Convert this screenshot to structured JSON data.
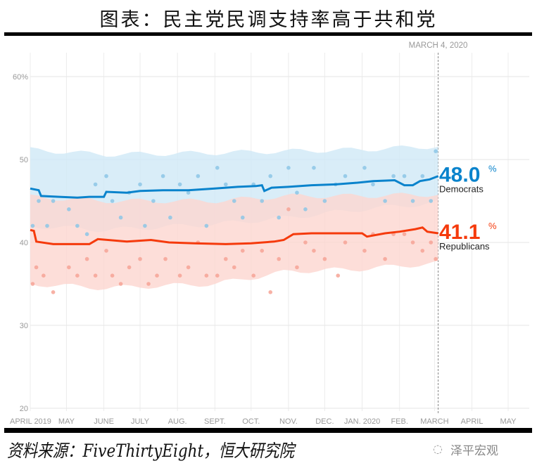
{
  "title": "图表：民主党民调支持率高于共和党",
  "source": "资料来源：FiveThirtyEight，恒大研究院",
  "brand": "泽平宏观",
  "brand_icon": "wechat-icon",
  "chart_data": {
    "type": "line",
    "title": "图表：民主党民调支持率高于共和党",
    "xlim": [
      "2019-04-01",
      "2020-05-01"
    ],
    "ylim": [
      20,
      62
    ],
    "y_ticks": [
      20,
      30,
      40,
      50,
      60
    ],
    "y_tick_labels": [
      "20",
      "30",
      "40",
      "50",
      "60%"
    ],
    "x_ticks": [
      {
        "date": "2019-04-01",
        "label": "APRIL 2019"
      },
      {
        "date": "2019-05-01",
        "label": "MAY"
      },
      {
        "date": "2019-06-01",
        "label": "JUNE"
      },
      {
        "date": "2019-07-01",
        "label": "JULY"
      },
      {
        "date": "2019-08-01",
        "label": "AUG."
      },
      {
        "date": "2019-09-01",
        "label": "SEPT."
      },
      {
        "date": "2019-10-01",
        "label": "OCT."
      },
      {
        "date": "2019-11-01",
        "label": "NOV."
      },
      {
        "date": "2019-12-01",
        "label": "DEC."
      },
      {
        "date": "2020-01-01",
        "label": "JAN. 2020"
      },
      {
        "date": "2020-02-01",
        "label": "FEB."
      },
      {
        "date": "2020-03-01",
        "label": "MARCH"
      },
      {
        "date": "2020-04-01",
        "label": "APRIL"
      },
      {
        "date": "2020-05-01",
        "label": "MAY"
      }
    ],
    "grid": true,
    "marker": {
      "date": "2020-03-04",
      "label": "MARCH 4, 2020"
    },
    "series": [
      {
        "name": "Democrats",
        "final_value": "48.0",
        "color": "#0a83cc",
        "band_color": "#cfe8f6",
        "dot_color": "#8cc6e6",
        "line": [
          [
            "2019-04-01",
            46.5
          ],
          [
            "2019-04-08",
            46.3
          ],
          [
            "2019-04-10",
            45.6
          ],
          [
            "2019-04-25",
            45.5
          ],
          [
            "2019-05-10",
            45.4
          ],
          [
            "2019-05-20",
            45.5
          ],
          [
            "2019-06-01",
            45.5
          ],
          [
            "2019-06-03",
            46.1
          ],
          [
            "2019-06-20",
            46.0
          ],
          [
            "2019-07-01",
            46.2
          ],
          [
            "2019-07-20",
            46.3
          ],
          [
            "2019-08-10",
            46.3
          ],
          [
            "2019-09-01",
            46.5
          ],
          [
            "2019-09-20",
            46.7
          ],
          [
            "2019-10-05",
            46.8
          ],
          [
            "2019-10-10",
            46.9
          ],
          [
            "2019-10-12",
            46.2
          ],
          [
            "2019-10-18",
            46.6
          ],
          [
            "2019-11-01",
            46.7
          ],
          [
            "2019-11-20",
            46.9
          ],
          [
            "2019-12-10",
            47.0
          ],
          [
            "2019-12-28",
            47.2
          ],
          [
            "2020-01-10",
            47.4
          ],
          [
            "2020-01-28",
            47.5
          ],
          [
            "2020-02-05",
            46.9
          ],
          [
            "2020-02-12",
            46.9
          ],
          [
            "2020-02-18",
            47.4
          ],
          [
            "2020-02-26",
            47.6
          ],
          [
            "2020-03-04",
            48.0
          ]
        ],
        "band_upper": [
          [
            "2019-04-01",
            51.2
          ],
          [
            "2019-06-01",
            50.6
          ],
          [
            "2019-09-01",
            50.8
          ],
          [
            "2019-11-01",
            51.0
          ],
          [
            "2020-01-01",
            51.2
          ],
          [
            "2020-03-04",
            51.6
          ]
        ],
        "band_lower": [
          [
            "2019-04-01",
            42.0
          ],
          [
            "2019-06-01",
            41.5
          ],
          [
            "2019-09-01",
            42.2
          ],
          [
            "2019-11-01",
            43.0
          ],
          [
            "2020-01-01",
            44.0
          ],
          [
            "2020-03-04",
            44.8
          ]
        ],
        "polls": [
          [
            "2019-04-03",
            42
          ],
          [
            "2019-04-08",
            45
          ],
          [
            "2019-04-15",
            42
          ],
          [
            "2019-04-20",
            45
          ],
          [
            "2019-05-03",
            44
          ],
          [
            "2019-05-10",
            42
          ],
          [
            "2019-05-18",
            41
          ],
          [
            "2019-05-25",
            47
          ],
          [
            "2019-06-03",
            48
          ],
          [
            "2019-06-08",
            45
          ],
          [
            "2019-06-15",
            43
          ],
          [
            "2019-06-22",
            46
          ],
          [
            "2019-07-01",
            47
          ],
          [
            "2019-07-05",
            42
          ],
          [
            "2019-07-12",
            45
          ],
          [
            "2019-07-20",
            48
          ],
          [
            "2019-07-26",
            43
          ],
          [
            "2019-08-03",
            47
          ],
          [
            "2019-08-10",
            46
          ],
          [
            "2019-08-18",
            48
          ],
          [
            "2019-08-25",
            42
          ],
          [
            "2019-09-03",
            49
          ],
          [
            "2019-09-10",
            47
          ],
          [
            "2019-09-17",
            45
          ],
          [
            "2019-09-24",
            43
          ],
          [
            "2019-10-03",
            47
          ],
          [
            "2019-10-10",
            45
          ],
          [
            "2019-10-17",
            48
          ],
          [
            "2019-10-24",
            43
          ],
          [
            "2019-11-01",
            49
          ],
          [
            "2019-11-08",
            46
          ],
          [
            "2019-11-15",
            44
          ],
          [
            "2019-11-22",
            49
          ],
          [
            "2019-12-01",
            45
          ],
          [
            "2019-12-10",
            47
          ],
          [
            "2019-12-18",
            48
          ],
          [
            "2020-01-03",
            49
          ],
          [
            "2020-01-10",
            47
          ],
          [
            "2020-01-20",
            45
          ],
          [
            "2020-01-27",
            48
          ],
          [
            "2020-02-05",
            48
          ],
          [
            "2020-02-12",
            45
          ],
          [
            "2020-02-20",
            48
          ],
          [
            "2020-02-27",
            45
          ],
          [
            "2020-03-02",
            51
          ]
        ]
      },
      {
        "name": "Republicans",
        "final_value": "41.1",
        "color": "#f53a0c",
        "band_color": "#fcd6cf",
        "dot_color": "#f6a395",
        "line": [
          [
            "2019-04-01",
            41.5
          ],
          [
            "2019-04-04",
            41.4
          ],
          [
            "2019-04-06",
            40.1
          ],
          [
            "2019-04-20",
            39.8
          ],
          [
            "2019-05-20",
            39.8
          ],
          [
            "2019-05-27",
            40.4
          ],
          [
            "2019-06-20",
            40.1
          ],
          [
            "2019-07-10",
            40.3
          ],
          [
            "2019-07-25",
            40.0
          ],
          [
            "2019-08-15",
            39.9
          ],
          [
            "2019-09-10",
            39.8
          ],
          [
            "2019-10-01",
            39.9
          ],
          [
            "2019-10-20",
            40.1
          ],
          [
            "2019-10-28",
            40.3
          ],
          [
            "2019-11-05",
            41.0
          ],
          [
            "2019-11-20",
            41.1
          ],
          [
            "2019-12-15",
            41.1
          ],
          [
            "2020-01-01",
            41.1
          ],
          [
            "2020-01-05",
            40.7
          ],
          [
            "2020-01-20",
            41.1
          ],
          [
            "2020-02-01",
            41.3
          ],
          [
            "2020-02-14",
            41.6
          ],
          [
            "2020-02-20",
            41.8
          ],
          [
            "2020-02-24",
            41.3
          ],
          [
            "2020-03-04",
            41.1
          ]
        ],
        "band_upper": [
          [
            "2019-04-01",
            45.5
          ],
          [
            "2019-06-01",
            45.0
          ],
          [
            "2019-09-01",
            45.0
          ],
          [
            "2019-11-01",
            45.6
          ],
          [
            "2020-01-01",
            45.6
          ],
          [
            "2020-03-04",
            45.8
          ]
        ],
        "band_lower": [
          [
            "2019-04-01",
            35.0
          ],
          [
            "2019-06-01",
            34.5
          ],
          [
            "2019-09-01",
            35.0
          ],
          [
            "2019-11-01",
            36.5
          ],
          [
            "2020-01-01",
            36.8
          ],
          [
            "2020-03-04",
            37.5
          ]
        ],
        "polls": [
          [
            "2019-04-03",
            35
          ],
          [
            "2019-04-06",
            37
          ],
          [
            "2019-04-12",
            36
          ],
          [
            "2019-04-20",
            34
          ],
          [
            "2019-05-03",
            37
          ],
          [
            "2019-05-10",
            36
          ],
          [
            "2019-05-18",
            38
          ],
          [
            "2019-05-25",
            36
          ],
          [
            "2019-06-03",
            39
          ],
          [
            "2019-06-08",
            36
          ],
          [
            "2019-06-15",
            35
          ],
          [
            "2019-06-22",
            37
          ],
          [
            "2019-07-01",
            38
          ],
          [
            "2019-07-08",
            35
          ],
          [
            "2019-07-15",
            36
          ],
          [
            "2019-07-22",
            38
          ],
          [
            "2019-08-03",
            36
          ],
          [
            "2019-08-10",
            37
          ],
          [
            "2019-08-18",
            40
          ],
          [
            "2019-08-25",
            36
          ],
          [
            "2019-09-03",
            36
          ],
          [
            "2019-09-10",
            38
          ],
          [
            "2019-09-17",
            37
          ],
          [
            "2019-09-24",
            39
          ],
          [
            "2019-10-03",
            36
          ],
          [
            "2019-10-10",
            39
          ],
          [
            "2019-10-17",
            34
          ],
          [
            "2019-10-24",
            38
          ],
          [
            "2019-11-01",
            44
          ],
          [
            "2019-11-08",
            37
          ],
          [
            "2019-11-15",
            40
          ],
          [
            "2019-11-22",
            39
          ],
          [
            "2019-12-01",
            38
          ],
          [
            "2019-12-12",
            36
          ],
          [
            "2019-12-18",
            40
          ],
          [
            "2020-01-03",
            39
          ],
          [
            "2020-01-10",
            41
          ],
          [
            "2020-01-20",
            38
          ],
          [
            "2020-01-27",
            41
          ],
          [
            "2020-02-05",
            41
          ],
          [
            "2020-02-12",
            40
          ],
          [
            "2020-02-20",
            39
          ],
          [
            "2020-02-27",
            40
          ],
          [
            "2020-03-02",
            38
          ]
        ]
      }
    ]
  }
}
